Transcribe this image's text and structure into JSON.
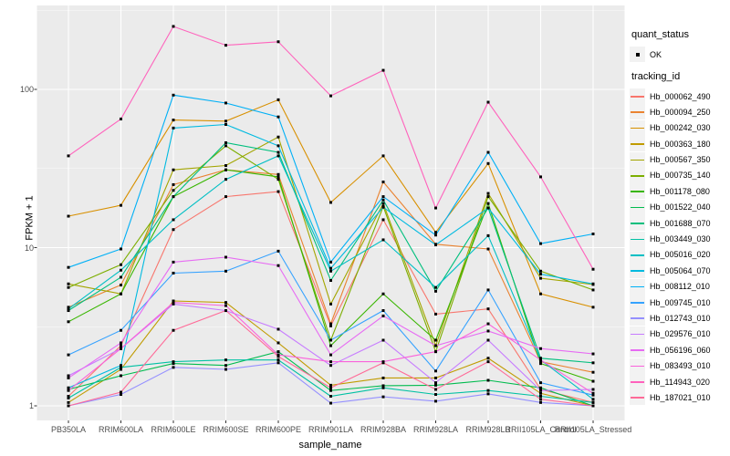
{
  "figure": {
    "panel_bg": "#ebebeb",
    "grid_major_color": "#ffffff",
    "grid_minor_color": "#ffffff",
    "point_color": "#000000",
    "tick_color": "#333333",
    "axis_text_color": "#4d4d4d",
    "legend_key_bg": "#f2f2f2"
  },
  "legend": {
    "quant_title": "quant_status",
    "quant_ok_label": "OK",
    "tracking_title": "tracking_id"
  },
  "chart_data": {
    "type": "line",
    "title": "",
    "xlabel": "sample_name",
    "ylabel": "FPKM + 1",
    "y_scale": "log10",
    "ylim": [
      1,
      340
    ],
    "y_major_ticks": [
      1,
      10,
      100
    ],
    "y_tick_labels": [
      "1",
      "10",
      "100"
    ],
    "y_minor_ticks": [
      3.1623,
      31.623,
      316.23
    ],
    "grid": true,
    "legend_position": "right",
    "categories": [
      "PB350LA",
      "RRIM600LA",
      "RRIM600LE",
      "RRIM600SE",
      "RRIM600PE",
      "RRIM901LA",
      "RRIM928BA",
      "RRIM928LA",
      "RRIM928LB",
      "RRII105LA_Control",
      "RRII105LA_Stressed"
    ],
    "point_shape": "square",
    "quant_status": "OK",
    "series": [
      {
        "name": "Hb_000062_490",
        "color": "#F8766D",
        "values": [
          1.15,
          2.4,
          13,
          21,
          22.6,
          3.2,
          15,
          3.8,
          4.1,
          1.27,
          1.05
        ]
      },
      {
        "name": "Hb_000094_250",
        "color": "#EA8331",
        "values": [
          4.2,
          5.8,
          25,
          31,
          29,
          3.3,
          26,
          10.5,
          9.8,
          1.9,
          1.63
        ]
      },
      {
        "name": "Hb_000242_030",
        "color": "#D89000",
        "values": [
          15.8,
          18.5,
          64,
          63,
          86,
          19.3,
          38,
          12.5,
          34,
          5.1,
          4.2
        ]
      },
      {
        "name": "Hb_000363_180",
        "color": "#C09B00",
        "values": [
          1.05,
          1.7,
          4.6,
          4.5,
          2.5,
          1.35,
          1.5,
          1.5,
          2.0,
          1.2,
          1.0
        ]
      },
      {
        "name": "Hb_000567_350",
        "color": "#A3A500",
        "values": [
          5.9,
          5.1,
          31,
          33,
          50,
          4.4,
          19,
          2.4,
          22,
          6.4,
          5.85
        ]
      },
      {
        "name": "Hb_000735_140",
        "color": "#7CAE00",
        "values": [
          5.6,
          7.8,
          23,
          44,
          27,
          2.6,
          18.2,
          2.2,
          21,
          7.1,
          5.4
        ]
      },
      {
        "name": "Hb_001178_080",
        "color": "#39B600",
        "values": [
          3.4,
          5.1,
          21,
          31,
          28,
          2.4,
          5.1,
          2.6,
          19,
          1.85,
          1.43
        ]
      },
      {
        "name": "Hb_001522_040",
        "color": "#00BB4E",
        "values": [
          1.27,
          1.55,
          1.85,
          1.8,
          2.2,
          1.25,
          1.34,
          1.35,
          1.45,
          1.3,
          1.0
        ]
      },
      {
        "name": "Hb_001688_070",
        "color": "#00BF7D",
        "values": [
          4.0,
          6.5,
          21,
          46,
          40,
          6.2,
          20,
          5.3,
          17.8,
          2.0,
          1.87
        ]
      },
      {
        "name": "Hb_003449_030",
        "color": "#00C1A3",
        "values": [
          1.12,
          1.75,
          1.9,
          1.95,
          1.95,
          1.15,
          1.3,
          1.18,
          1.25,
          1.15,
          1.05
        ]
      },
      {
        "name": "Hb_005016_020",
        "color": "#00BFC4",
        "values": [
          4.1,
          7.2,
          15,
          27,
          38,
          7.1,
          11.2,
          5.6,
          11.9,
          1.95,
          1.1
        ]
      },
      {
        "name": "Hb_005064_070",
        "color": "#00BAE0",
        "values": [
          1.3,
          1.8,
          57,
          60,
          44,
          7.4,
          18,
          10.4,
          17.8,
          6.8,
          5.9
        ]
      },
      {
        "name": "Hb_008112_010",
        "color": "#00B0F6",
        "values": [
          7.5,
          9.8,
          92,
          82,
          67,
          8.1,
          21,
          12,
          40,
          10.6,
          12.2
        ]
      },
      {
        "name": "Hb_009745_010",
        "color": "#35A2FF",
        "values": [
          2.1,
          3.0,
          6.9,
          7.1,
          9.5,
          2.6,
          4.0,
          1.66,
          5.4,
          1.4,
          1.17
        ]
      },
      {
        "name": "Hb_012743_010",
        "color": "#9590FF",
        "values": [
          1.0,
          1.18,
          1.75,
          1.7,
          1.87,
          1.04,
          1.14,
          1.07,
          1.19,
          1.05,
          1.0
        ]
      },
      {
        "name": "Hb_029576_010",
        "color": "#C77CFF",
        "values": [
          1.55,
          2.3,
          4.4,
          4.0,
          3.05,
          1.8,
          2.6,
          1.4,
          2.6,
          1.25,
          1.27
        ]
      },
      {
        "name": "Hb_056196_060",
        "color": "#E76BF3",
        "values": [
          1.5,
          2.5,
          8.1,
          8.7,
          7.7,
          2.1,
          3.7,
          2.4,
          2.97,
          2.3,
          2.13
        ]
      },
      {
        "name": "Hb_083493_010",
        "color": "#FA62DB",
        "values": [
          1.25,
          2.3,
          4.5,
          4.3,
          2.1,
          1.9,
          1.9,
          2.2,
          3.3,
          1.95,
          1.2
        ]
      },
      {
        "name": "Hb_114943_020",
        "color": "#FF62BC",
        "values": [
          38,
          65,
          250,
          190,
          200,
          91,
          132,
          17.8,
          83,
          28,
          7.3
        ]
      },
      {
        "name": "Hb_187021_010",
        "color": "#FF6A98",
        "values": [
          1.0,
          1.22,
          3.0,
          4.0,
          2.05,
          1.3,
          1.87,
          1.27,
          1.9,
          1.1,
          1.0
        ]
      }
    ]
  }
}
